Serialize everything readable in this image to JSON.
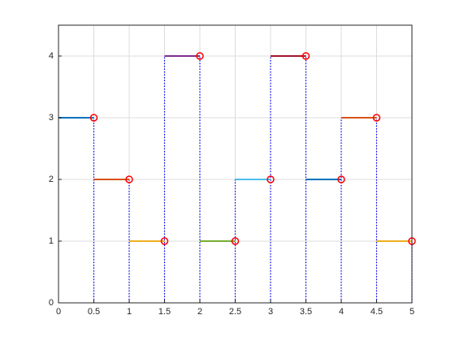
{
  "chart_data": {
    "type": "step",
    "x": [
      0.5,
      1,
      1.5,
      2,
      2.5,
      3,
      3.5,
      4,
      4.5,
      5
    ],
    "values": [
      3,
      2,
      1,
      4,
      1,
      2,
      4,
      2,
      3,
      1
    ],
    "colors": [
      "#0072BD",
      "#D95319",
      "#EDB120",
      "#7E2F8E",
      "#77AC30",
      "#4DBEEE",
      "#A2142F",
      "#0072BD",
      "#D95319",
      "#EDB120"
    ],
    "marker_color": "#ff0000",
    "drop_line_color": "#0000ff",
    "xlim": [
      0,
      5
    ],
    "ylim": [
      0,
      4.5
    ],
    "xticks": [
      0,
      0.5,
      1,
      1.5,
      2,
      2.5,
      3,
      3.5,
      4,
      4.5,
      5
    ],
    "yticks": [
      0,
      1,
      2,
      3,
      4
    ],
    "grid": true
  }
}
